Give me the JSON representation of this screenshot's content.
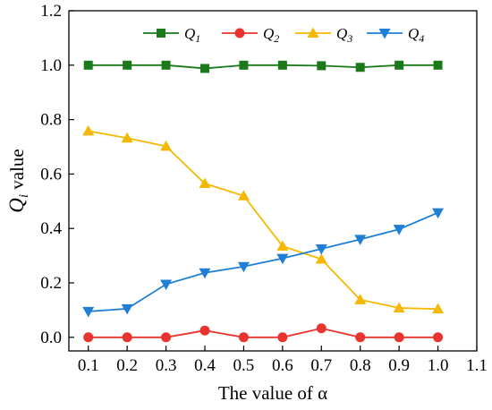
{
  "chart_data": {
    "type": "line",
    "xlabel": "The value of α",
    "ylabel": {
      "base": "Q",
      "sub": "i",
      "rest": " value"
    },
    "xlim": [
      0.05,
      1.1
    ],
    "ylim": [
      -0.05,
      1.2
    ],
    "xticks": [
      "0.1",
      "0.2",
      "0.3",
      "0.4",
      "0.5",
      "0.6",
      "0.7",
      "0.8",
      "0.9",
      "1.0",
      "1.1"
    ],
    "yticks": [
      "0.0",
      "0.2",
      "0.4",
      "0.6",
      "0.8",
      "1.0",
      "1.2"
    ],
    "x": [
      0.1,
      0.2,
      0.3,
      0.4,
      0.5,
      0.6,
      0.7,
      0.8,
      0.9,
      1.0
    ],
    "legend_position": "top",
    "series": [
      {
        "name": "Q1",
        "label_base": "Q",
        "label_sub": "1",
        "color": "#1a7a1a",
        "marker": "square",
        "values": [
          1.0,
          1.0,
          1.0,
          0.988,
          1.0,
          1.0,
          0.998,
          0.992,
          1.0,
          1.0
        ]
      },
      {
        "name": "Q2",
        "label_base": "Q",
        "label_sub": "2",
        "color": "#e8332e",
        "marker": "circle",
        "values": [
          0.0,
          0.0,
          0.0,
          0.025,
          0.0,
          0.0,
          0.033,
          0.0,
          0.0,
          0.0
        ]
      },
      {
        "name": "Q3",
        "label_base": "Q",
        "label_sub": "3",
        "color": "#f5b800",
        "marker": "triangle-up",
        "values": [
          0.758,
          0.732,
          0.702,
          0.565,
          0.52,
          0.335,
          0.287,
          0.138,
          0.108,
          0.104
        ]
      },
      {
        "name": "Q4",
        "label_base": "Q",
        "label_sub": "4",
        "color": "#1f7fd4",
        "marker": "triangle-down",
        "values": [
          0.095,
          0.105,
          0.195,
          0.237,
          0.26,
          0.29,
          0.325,
          0.36,
          0.397,
          0.458
        ]
      }
    ]
  }
}
